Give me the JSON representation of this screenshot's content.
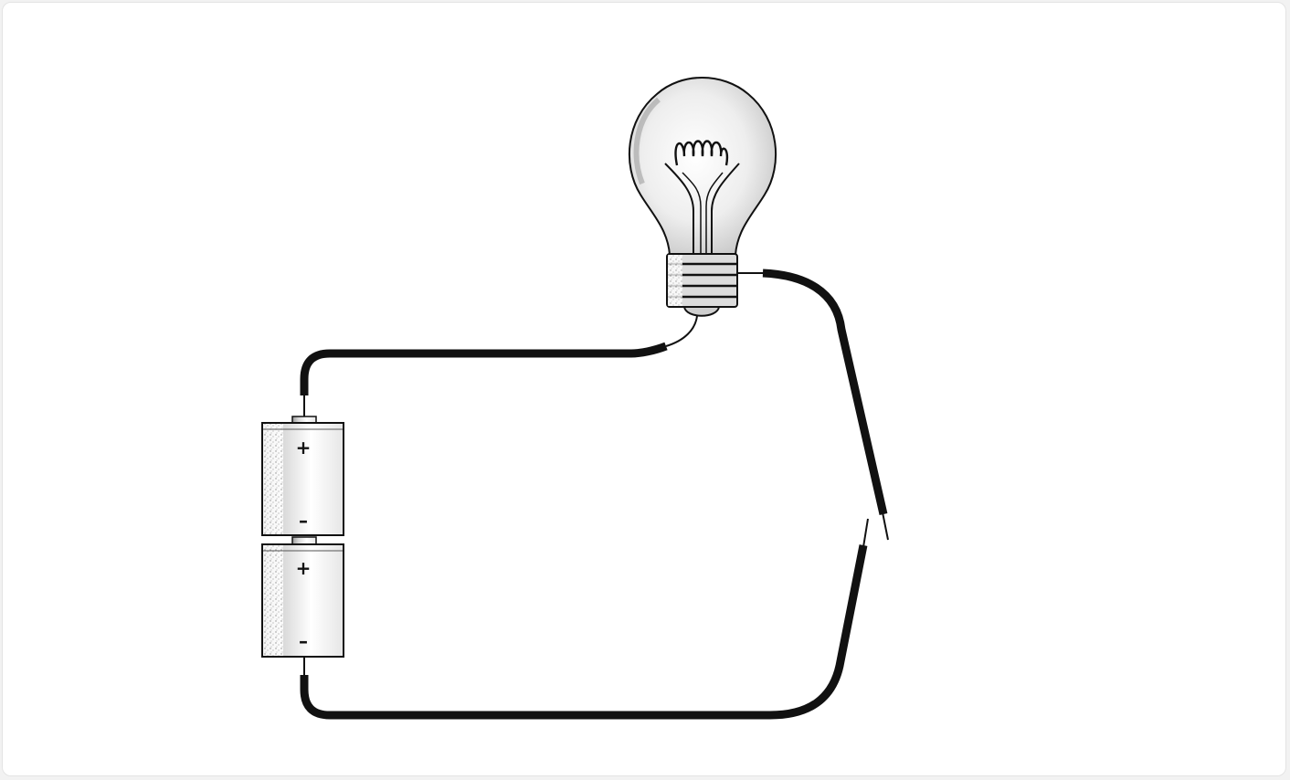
{
  "diagram": {
    "title": "",
    "components": {
      "bulb": "light-bulb",
      "battery_cells": [
        {
          "positive_symbol": "+",
          "negative_symbol": "–"
        },
        {
          "positive_symbol": "+",
          "negative_symbol": "–"
        }
      ],
      "switch_state": "open"
    },
    "colors": {
      "ink": "#111111",
      "wire": "#111111",
      "glass_shade": "#e9e9e9",
      "background": "#ffffff"
    }
  }
}
